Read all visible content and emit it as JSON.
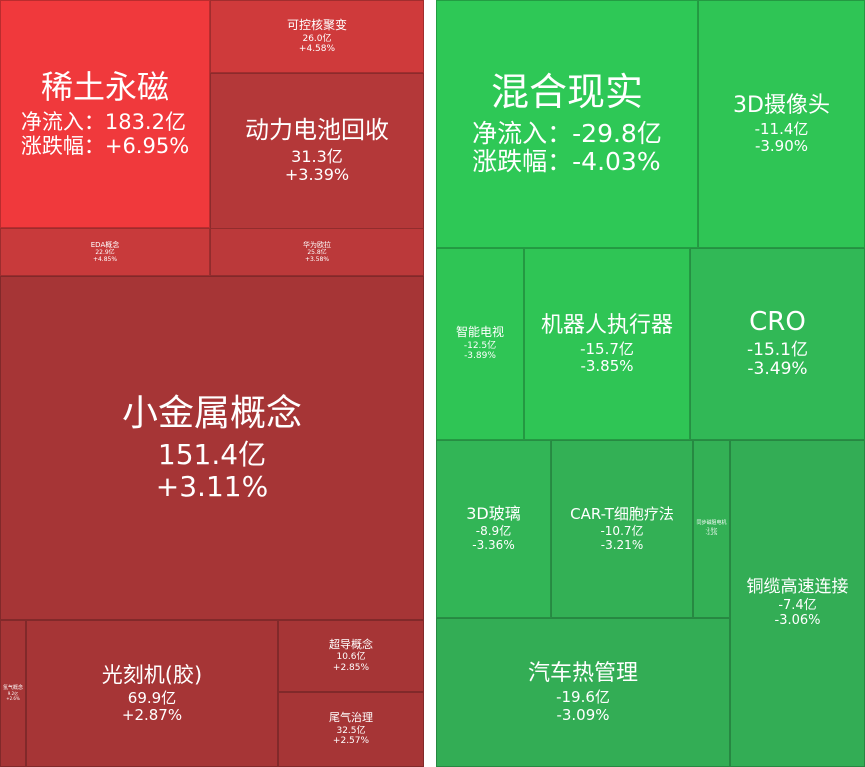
{
  "chart_data": [
    {
      "type": "treemap",
      "title": "",
      "metric_labels": {
        "net_inflow": "净流入：",
        "change": "涨跌幅："
      },
      "tiles": [
        {
          "name": "稀土永磁",
          "net_inflow": "183.2亿",
          "change": "+6.95%",
          "value": 183.2,
          "pct": 6.95,
          "color": "#f0393c",
          "detailed": true
        },
        {
          "name": "可控核聚变",
          "net_inflow": "26.0亿",
          "change": "+4.58%",
          "value": 26.0,
          "pct": 4.58,
          "color": "#cf3a3b"
        },
        {
          "name": "动力电池回收",
          "net_inflow": "31.3亿",
          "change": "+3.39%",
          "value": 31.3,
          "pct": 3.39,
          "color": "#b43839"
        },
        {
          "name": "EDA概念",
          "net_inflow": "22.9亿",
          "change": "+4.85%",
          "value": 22.9,
          "pct": 4.85,
          "color": "#c83a3b"
        },
        {
          "name": "华为欧拉",
          "net_inflow": "25.8亿",
          "change": "+3.58%",
          "value": 25.8,
          "pct": 3.58,
          "color": "#bb393a"
        },
        {
          "name": "小金属概念",
          "net_inflow": "151.4亿",
          "change": "+3.11%",
          "value": 151.4,
          "pct": 3.11,
          "color": "#a63536"
        },
        {
          "name": "氢气概念",
          "net_inflow": "9.2亿",
          "change": "+2.6%",
          "value": 9.2,
          "pct": 2.6,
          "color": "#a63536"
        },
        {
          "name": "光刻机(胶)",
          "net_inflow": "69.9亿",
          "change": "+2.87%",
          "value": 69.9,
          "pct": 2.87,
          "color": "#a63536"
        },
        {
          "name": "超导概念",
          "net_inflow": "10.6亿",
          "change": "+2.85%",
          "value": 10.6,
          "pct": 2.85,
          "color": "#a63536"
        },
        {
          "name": "尾气治理",
          "net_inflow": "32.5亿",
          "change": "+2.57%",
          "value": 32.5,
          "pct": 2.57,
          "color": "#a63536"
        }
      ]
    },
    {
      "type": "treemap",
      "title": "",
      "metric_labels": {
        "net_inflow": "净流入：",
        "change": "涨跌幅："
      },
      "tiles": [
        {
          "name": "混合现实",
          "net_inflow": "-29.8亿",
          "change": "-4.03%",
          "value": -29.8,
          "pct": -4.03,
          "color": "#2ec856",
          "detailed": true
        },
        {
          "name": "3D摄像头",
          "net_inflow": "-11.4亿",
          "change": "-3.90%",
          "value": -11.4,
          "pct": -3.9,
          "color": "#2fc555"
        },
        {
          "name": "智能电视",
          "net_inflow": "-12.5亿",
          "change": "-3.89%",
          "value": -12.5,
          "pct": -3.89,
          "color": "#2fc555"
        },
        {
          "name": "机器人执行器",
          "net_inflow": "-15.7亿",
          "change": "-3.85%",
          "value": -15.7,
          "pct": -3.85,
          "color": "#2fc555"
        },
        {
          "name": "CRO",
          "net_inflow": "-15.1亿",
          "change": "-3.49%",
          "value": -15.1,
          "pct": -3.49,
          "color": "#31b856"
        },
        {
          "name": "3D玻璃",
          "net_inflow": "-8.9亿",
          "change": "-3.36%",
          "value": -8.9,
          "pct": -3.36,
          "color": "#32b556"
        },
        {
          "name": "CAR-T细胞疗法",
          "net_inflow": "-10.7亿",
          "change": "-3.21%",
          "value": -10.7,
          "pct": -3.21,
          "color": "#33b055"
        },
        {
          "name": "同步磁阻电机",
          "net_inflow": "-3.9亿",
          "change": "-3.2%",
          "value": -3.9,
          "pct": -3.2,
          "color": "#33b055"
        },
        {
          "name": "铜缆高速连接",
          "net_inflow": "-7.4亿",
          "change": "-3.06%",
          "value": -7.4,
          "pct": -3.06,
          "color": "#33ad55"
        },
        {
          "name": "汽车热管理",
          "net_inflow": "-19.6亿",
          "change": "-3.09%",
          "value": -19.6,
          "pct": -3.09,
          "color": "#33ad55"
        }
      ]
    }
  ]
}
